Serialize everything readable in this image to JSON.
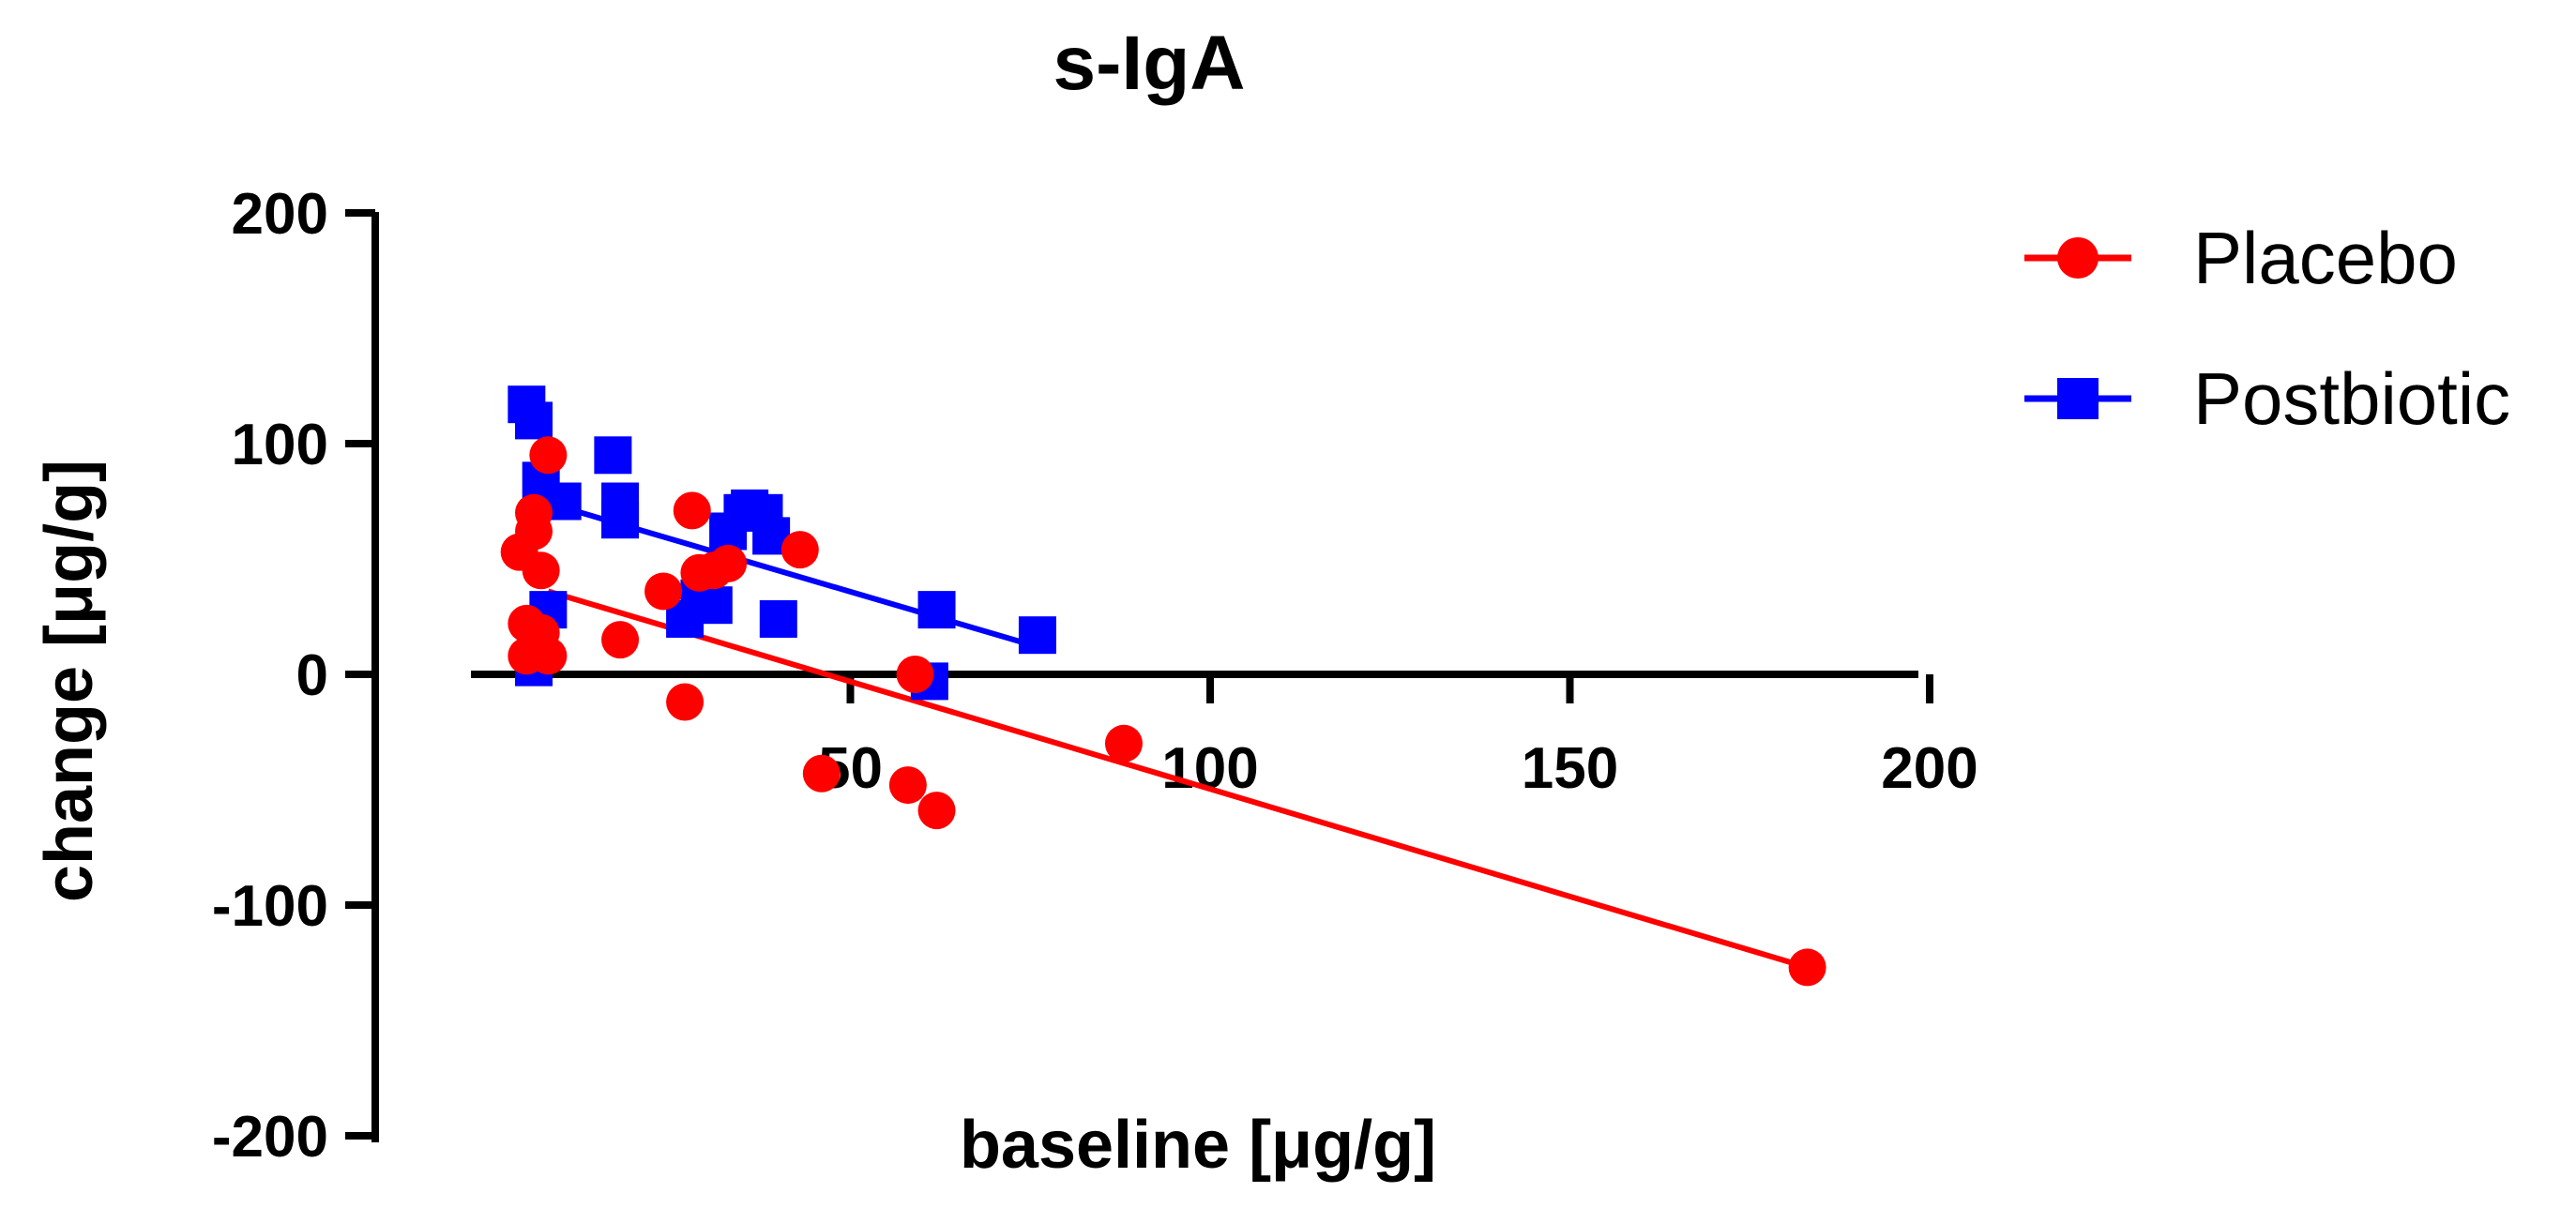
{
  "chart_data": {
    "type": "scatter",
    "title": "s-IgA",
    "xlabel": "baseline [μg/g]",
    "ylabel": "change [μg/g]",
    "xlim": [
      0,
      200
    ],
    "ylim": [
      -200,
      200
    ],
    "x_ticks": [
      "50",
      "100",
      "150",
      "200"
    ],
    "y_ticks": [
      "200",
      "100",
      "0",
      "-100",
      "-200"
    ],
    "x_tick_values": [
      50,
      100,
      150,
      200
    ],
    "y_tick_values": [
      200,
      100,
      0,
      -100,
      -200
    ],
    "legend_position": "top-right",
    "series": [
      {
        "name": "Placebo",
        "color": "#ff0000",
        "marker": "circle",
        "points": [
          [
            4,
            53
          ],
          [
            5,
            8
          ],
          [
            5,
            22
          ],
          [
            6,
            70
          ],
          [
            6,
            62
          ],
          [
            7,
            45
          ],
          [
            7,
            18
          ],
          [
            8,
            95
          ],
          [
            8,
            8
          ],
          [
            18,
            15
          ],
          [
            24,
            36
          ],
          [
            27,
            -12
          ],
          [
            28,
            71
          ],
          [
            29,
            44
          ],
          [
            31,
            45
          ],
          [
            33,
            48
          ],
          [
            43,
            54
          ],
          [
            46,
            -43
          ],
          [
            58,
            -48
          ],
          [
            59,
            0
          ],
          [
            62,
            -59
          ],
          [
            88,
            -30
          ],
          [
            183,
            -127
          ]
        ],
        "fit_line": [
          [
            8,
            36
          ],
          [
            183,
            -127
          ]
        ]
      },
      {
        "name": "Postbiotic",
        "color": "#0000ff",
        "marker": "square",
        "points": [
          [
            5,
            117
          ],
          [
            6,
            110
          ],
          [
            6,
            3
          ],
          [
            7,
            84
          ],
          [
            8,
            28
          ],
          [
            10,
            75
          ],
          [
            17,
            95
          ],
          [
            18,
            75
          ],
          [
            18,
            67
          ],
          [
            27,
            24
          ],
          [
            29,
            33
          ],
          [
            31,
            30
          ],
          [
            33,
            62
          ],
          [
            35,
            70
          ],
          [
            36,
            72
          ],
          [
            38,
            70
          ],
          [
            39,
            60
          ],
          [
            40,
            24
          ],
          [
            61,
            -3
          ],
          [
            62,
            28
          ],
          [
            76,
            17
          ]
        ],
        "fit_line": [
          [
            5,
            77
          ],
          [
            76,
            12
          ]
        ]
      }
    ]
  }
}
